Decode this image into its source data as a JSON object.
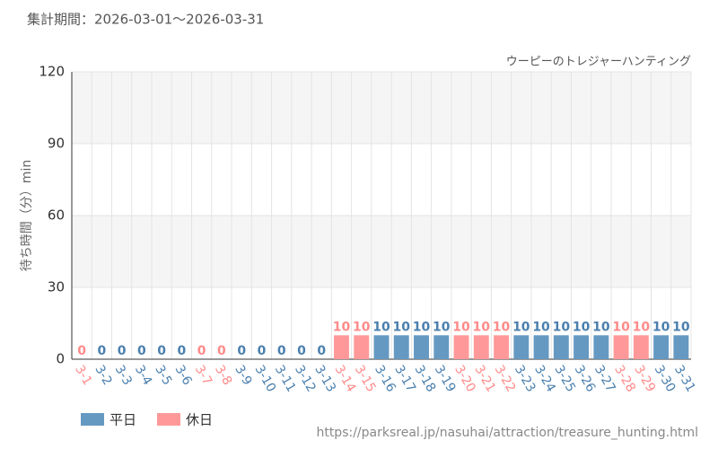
{
  "chart_data": {
    "type": "bar",
    "title": "集計期間：2026-03-01～2026-03-31",
    "subtitle": "ウーピーのトレジャーハンティング",
    "y_label": "待ち時間（分）min",
    "source": "https://parksreal.jp/nasuhai/attraction/treasure_hunting.html",
    "categories": [
      "3-1",
      "3-2",
      "3-3",
      "3-4",
      "3-5",
      "3-6",
      "3-7",
      "3-8",
      "3-9",
      "3-10",
      "3-11",
      "3-12",
      "3-13",
      "3-14",
      "3-15",
      "3-16",
      "3-17",
      "3-18",
      "3-19",
      "3-20",
      "3-21",
      "3-22",
      "3-23",
      "3-24",
      "3-25",
      "3-26",
      "3-27",
      "3-28",
      "3-29",
      "3-30",
      "3-31"
    ],
    "series": [
      {
        "name": "平日",
        "color": "#6699c2",
        "label_color": "#4a7fae",
        "values": [
          null,
          0,
          0,
          0,
          0,
          0,
          null,
          null,
          0,
          0,
          0,
          0,
          0,
          null,
          null,
          10,
          10,
          10,
          10,
          null,
          null,
          null,
          10,
          10,
          10,
          10,
          10,
          null,
          null,
          10,
          10
        ]
      },
      {
        "name": "休日",
        "color": "#ff9999",
        "label_color": "#ff8a8a",
        "values": [
          0,
          null,
          null,
          null,
          null,
          null,
          0,
          0,
          null,
          null,
          null,
          null,
          null,
          10,
          10,
          null,
          null,
          null,
          null,
          10,
          10,
          10,
          null,
          null,
          null,
          null,
          null,
          10,
          10,
          null,
          null
        ]
      }
    ],
    "ylim": [
      0,
      120
    ],
    "yticks": [
      0,
      30,
      60,
      90,
      120
    ],
    "grid": true
  }
}
